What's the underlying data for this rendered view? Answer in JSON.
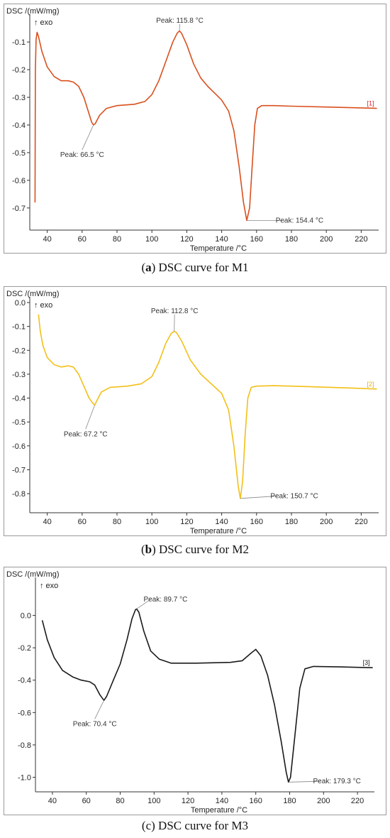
{
  "chart_data": [
    {
      "type": "line",
      "panel_label": "(a)",
      "caption_letter": "a",
      "caption_text": " DSC curve for M1",
      "ylabel": "DSC /(mW/mg)",
      "exo_label": "↑ exo",
      "xlabel": "Temperature /°C",
      "xlim": [
        30,
        230
      ],
      "ylim": [
        -0.78,
        -0.02
      ],
      "x_ticks": [
        40,
        60,
        80,
        100,
        120,
        140,
        160,
        180,
        200,
        220
      ],
      "y_ticks": [
        -0.1,
        -0.2,
        -0.3,
        -0.4,
        -0.5,
        -0.6,
        -0.7
      ],
      "grid": false,
      "series": [
        {
          "color": "#d9501e",
          "tag": "[1]",
          "tag_color": "#e0202a",
          "points": [
            [
              33,
              -0.68
            ],
            [
              33.2,
              -0.2
            ],
            [
              33.6,
              -0.09
            ],
            [
              34.2,
              -0.065
            ],
            [
              35,
              -0.08
            ],
            [
              37,
              -0.135
            ],
            [
              40,
              -0.19
            ],
            [
              44,
              -0.225
            ],
            [
              48,
              -0.24
            ],
            [
              52,
              -0.24
            ],
            [
              55,
              -0.245
            ],
            [
              58,
              -0.26
            ],
            [
              61,
              -0.3
            ],
            [
              63.5,
              -0.35
            ],
            [
              65.5,
              -0.39
            ],
            [
              66.5,
              -0.4
            ],
            [
              67.5,
              -0.395
            ],
            [
              70,
              -0.365
            ],
            [
              74,
              -0.34
            ],
            [
              80,
              -0.33
            ],
            [
              90,
              -0.325
            ],
            [
              96,
              -0.315
            ],
            [
              100,
              -0.29
            ],
            [
              104,
              -0.24
            ],
            [
              108,
              -0.17
            ],
            [
              112,
              -0.1
            ],
            [
              114.5,
              -0.068
            ],
            [
              115.8,
              -0.06
            ],
            [
              117,
              -0.068
            ],
            [
              120,
              -0.11
            ],
            [
              124,
              -0.18
            ],
            [
              128,
              -0.23
            ],
            [
              132,
              -0.26
            ],
            [
              136,
              -0.285
            ],
            [
              140,
              -0.31
            ],
            [
              144,
              -0.35
            ],
            [
              147,
              -0.42
            ],
            [
              150,
              -0.55
            ],
            [
              152.5,
              -0.68
            ],
            [
              154.4,
              -0.745
            ],
            [
              156,
              -0.7
            ],
            [
              157.5,
              -0.55
            ],
            [
              159,
              -0.4
            ],
            [
              160.5,
              -0.34
            ],
            [
              163,
              -0.33
            ],
            [
              170,
              -0.33
            ],
            [
              180,
              -0.332
            ],
            [
              200,
              -0.335
            ],
            [
              220,
              -0.338
            ],
            [
              229,
              -0.34
            ]
          ]
        }
      ],
      "annotations": [
        {
          "text": "Peak: 66.5 °C",
          "x": 66.5,
          "y": -0.4,
          "lx": 60,
          "ly": -0.49
        },
        {
          "text": "Peak: 115.8 °C",
          "x": 115.8,
          "y": -0.06,
          "lx": 116,
          "ly": -0.035
        },
        {
          "text": "Peak: 154.4 °C",
          "x": 154.4,
          "y": -0.745,
          "lx": 175,
          "ly": -0.745
        }
      ]
    },
    {
      "type": "line",
      "panel_label": "(b)",
      "caption_letter": "b",
      "caption_text": " DSC curve for M2",
      "ylabel": "DSC /(mW/mg)",
      "exo_label": "↑ exo",
      "xlabel": "Temperature /°C",
      "xlim": [
        30,
        230
      ],
      "ylim": [
        -0.88,
        0.0
      ],
      "x_ticks": [
        40,
        60,
        80,
        100,
        120,
        140,
        160,
        180,
        200,
        220
      ],
      "y_ticks": [
        0.0,
        -0.1,
        -0.2,
        -0.3,
        -0.4,
        -0.5,
        -0.6,
        -0.7,
        -0.8
      ],
      "grid": false,
      "series": [
        {
          "color": "#f2c018",
          "tag": "[2]",
          "tag_color": "#e8b010",
          "points": [
            [
              35,
              -0.05
            ],
            [
              36,
              -0.12
            ],
            [
              37.5,
              -0.18
            ],
            [
              40,
              -0.23
            ],
            [
              44,
              -0.26
            ],
            [
              48,
              -0.27
            ],
            [
              52,
              -0.265
            ],
            [
              55,
              -0.27
            ],
            [
              58,
              -0.3
            ],
            [
              61,
              -0.35
            ],
            [
              64,
              -0.4
            ],
            [
              66,
              -0.42
            ],
            [
              67.2,
              -0.43
            ],
            [
              68.5,
              -0.41
            ],
            [
              71,
              -0.375
            ],
            [
              76,
              -0.355
            ],
            [
              86,
              -0.35
            ],
            [
              94,
              -0.34
            ],
            [
              100,
              -0.31
            ],
            [
              104,
              -0.25
            ],
            [
              108,
              -0.17
            ],
            [
              111,
              -0.13
            ],
            [
              112.8,
              -0.12
            ],
            [
              114,
              -0.125
            ],
            [
              117,
              -0.16
            ],
            [
              122,
              -0.24
            ],
            [
              128,
              -0.3
            ],
            [
              134,
              -0.34
            ],
            [
              140,
              -0.38
            ],
            [
              144,
              -0.45
            ],
            [
              147,
              -0.6
            ],
            [
              149.5,
              -0.77
            ],
            [
              150.7,
              -0.82
            ],
            [
              152,
              -0.75
            ],
            [
              153.5,
              -0.55
            ],
            [
              155,
              -0.4
            ],
            [
              157,
              -0.355
            ],
            [
              160,
              -0.35
            ],
            [
              170,
              -0.348
            ],
            [
              190,
              -0.352
            ],
            [
              210,
              -0.357
            ],
            [
              229,
              -0.362
            ]
          ]
        }
      ],
      "annotations": [
        {
          "text": "Peak: 67.2 °C",
          "x": 67.2,
          "y": -0.43,
          "lx": 62,
          "ly": -0.53
        },
        {
          "text": "Peak: 112.8 °C",
          "x": 112.8,
          "y": -0.12,
          "lx": 113,
          "ly": -0.05
        },
        {
          "text": "Peak: 150.7 °C",
          "x": 150.7,
          "y": -0.82,
          "lx": 172,
          "ly": -0.81
        }
      ]
    },
    {
      "type": "line",
      "panel_label": "(c)",
      "caption_letter": "",
      "caption_text": "(c) DSC curve for M3",
      "ylabel": "DSC /(mW/mg)",
      "exo_label": "↑ exo",
      "xlabel": "Temperature /°C",
      "xlim": [
        30,
        230
      ],
      "ylim": [
        -1.09,
        0.2
      ],
      "x_ticks": [
        40,
        60,
        80,
        100,
        120,
        140,
        160,
        180,
        200,
        220
      ],
      "y_ticks": [
        0.0,
        -0.2,
        -0.4,
        -0.6,
        -0.8,
        -1.0
      ],
      "grid": false,
      "series": [
        {
          "color": "#1a1a1a",
          "tag": "[3]",
          "tag_color": "#1a1a1a",
          "points": [
            [
              34,
              -0.03
            ],
            [
              37,
              -0.15
            ],
            [
              41,
              -0.26
            ],
            [
              46,
              -0.34
            ],
            [
              52,
              -0.38
            ],
            [
              57,
              -0.4
            ],
            [
              62,
              -0.41
            ],
            [
              65,
              -0.43
            ],
            [
              68,
              -0.49
            ],
            [
              70.4,
              -0.525
            ],
            [
              72,
              -0.5
            ],
            [
              76,
              -0.4
            ],
            [
              80,
              -0.3
            ],
            [
              84,
              -0.15
            ],
            [
              87,
              -0.02
            ],
            [
              89,
              0.035
            ],
            [
              89.7,
              0.04
            ],
            [
              91,
              0.02
            ],
            [
              94,
              -0.1
            ],
            [
              98,
              -0.22
            ],
            [
              103,
              -0.27
            ],
            [
              110,
              -0.295
            ],
            [
              125,
              -0.295
            ],
            [
              145,
              -0.29
            ],
            [
              152,
              -0.28
            ],
            [
              157,
              -0.235
            ],
            [
              160,
              -0.21
            ],
            [
              163,
              -0.25
            ],
            [
              167,
              -0.37
            ],
            [
              171,
              -0.55
            ],
            [
              175,
              -0.78
            ],
            [
              178,
              -0.97
            ],
            [
              179.3,
              -1.03
            ],
            [
              180.5,
              -1.0
            ],
            [
              183,
              -0.75
            ],
            [
              186,
              -0.45
            ],
            [
              189,
              -0.33
            ],
            [
              194,
              -0.315
            ],
            [
              210,
              -0.318
            ],
            [
              229,
              -0.323
            ]
          ]
        }
      ],
      "annotations": [
        {
          "text": "Peak: 70.4 °C",
          "x": 70.4,
          "y": -0.525,
          "lx": 65,
          "ly": -0.64
        },
        {
          "text": "Peak: 89.7 °C",
          "x": 89.7,
          "y": 0.04,
          "lx": 98,
          "ly": 0.1
        },
        {
          "text": "Peak: 179.3 °C",
          "x": 179.3,
          "y": -1.03,
          "lx": 198,
          "ly": -1.025
        }
      ]
    }
  ]
}
